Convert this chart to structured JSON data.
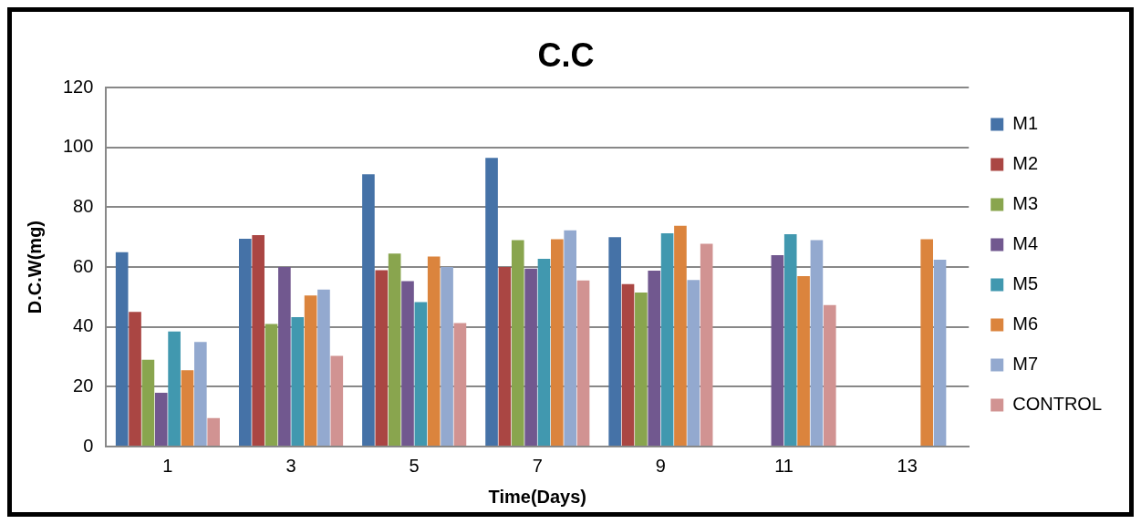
{
  "chart_data": {
    "type": "bar",
    "title": "C.C",
    "xlabel": "Time(Days)",
    "ylabel": "D.C.W(mg)",
    "categories": [
      "1",
      "3",
      "5",
      "7",
      "9",
      "11",
      "13"
    ],
    "series": [
      {
        "name": "M1",
        "color": "#4572a7",
        "values": [
          65,
          69.5,
          91,
          96.5,
          70,
          null,
          null
        ]
      },
      {
        "name": "M2",
        "color": "#aa4643",
        "values": [
          45,
          70.7,
          59,
          60,
          54.3,
          null,
          null
        ]
      },
      {
        "name": "M3",
        "color": "#89a54e",
        "values": [
          29,
          41,
          64.5,
          69,
          51.5,
          null,
          null
        ]
      },
      {
        "name": "M4",
        "color": "#71588f",
        "values": [
          18,
          60,
          55.3,
          59.5,
          58.8,
          64,
          null
        ]
      },
      {
        "name": "M5",
        "color": "#4198af",
        "values": [
          38.5,
          43.3,
          48.3,
          62.8,
          71.3,
          71,
          null
        ]
      },
      {
        "name": "M6",
        "color": "#db843d",
        "values": [
          25.5,
          50.5,
          63.5,
          69.3,
          73.8,
          57,
          69.3
        ]
      },
      {
        "name": "M7",
        "color": "#93a9cf",
        "values": [
          35,
          52.5,
          60,
          72.3,
          55.7,
          69,
          62.5
        ]
      },
      {
        "name": "CONTROL",
        "color": "#d19392",
        "values": [
          9.5,
          30.3,
          41.3,
          55.5,
          67.8,
          47.3,
          null
        ]
      }
    ],
    "ylim": [
      0,
      120
    ],
    "yticks": [
      0,
      20,
      40,
      60,
      80,
      100,
      120
    ],
    "grid": "y",
    "legend": "right"
  }
}
